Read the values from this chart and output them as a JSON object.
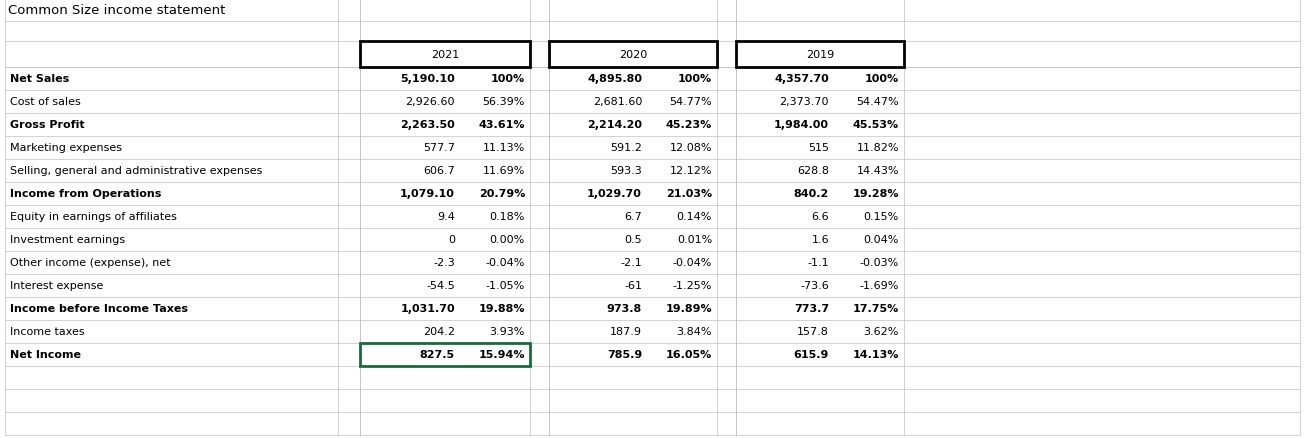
{
  "title": "Common Size income statement",
  "year_blocks": [
    {
      "year": "2021",
      "val_idx": 0
    },
    {
      "year": "2020",
      "val_idx": 1
    },
    {
      "year": "2019",
      "val_idx": 2
    }
  ],
  "rows": [
    {
      "label": "Net Sales",
      "bold": true,
      "vals": [
        [
          "5,190.10",
          "100%"
        ],
        [
          "4,895.80",
          "100%"
        ],
        [
          "4,357.70",
          "100%"
        ]
      ]
    },
    {
      "label": "Cost of sales",
      "bold": false,
      "vals": [
        [
          "2,926.60",
          "56.39%"
        ],
        [
          "2,681.60",
          "54.77%"
        ],
        [
          "2,373.70",
          "54.47%"
        ]
      ]
    },
    {
      "label": "Gross Profit",
      "bold": true,
      "vals": [
        [
          "2,263.50",
          "43.61%"
        ],
        [
          "2,214.20",
          "45.23%"
        ],
        [
          "1,984.00",
          "45.53%"
        ]
      ]
    },
    {
      "label": "Marketing expenses",
      "bold": false,
      "vals": [
        [
          "577.7",
          "11.13%"
        ],
        [
          "591.2",
          "12.08%"
        ],
        [
          "515",
          "11.82%"
        ]
      ]
    },
    {
      "label": "Selling, general and administrative expenses",
      "bold": false,
      "vals": [
        [
          "606.7",
          "11.69%"
        ],
        [
          "593.3",
          "12.12%"
        ],
        [
          "628.8",
          "14.43%"
        ]
      ]
    },
    {
      "label": "Income from Operations",
      "bold": true,
      "vals": [
        [
          "1,079.10",
          "20.79%"
        ],
        [
          "1,029.70",
          "21.03%"
        ],
        [
          "840.2",
          "19.28%"
        ]
      ]
    },
    {
      "label": "Equity in earnings of affiliates",
      "bold": false,
      "vals": [
        [
          "9.4",
          "0.18%"
        ],
        [
          "6.7",
          "0.14%"
        ],
        [
          "6.6",
          "0.15%"
        ]
      ]
    },
    {
      "label": "Investment earnings",
      "bold": false,
      "vals": [
        [
          "0",
          "0.00%"
        ],
        [
          "0.5",
          "0.01%"
        ],
        [
          "1.6",
          "0.04%"
        ]
      ]
    },
    {
      "label": "Other income (expense), net",
      "bold": false,
      "vals": [
        [
          "-2.3",
          "-0.04%"
        ],
        [
          "-2.1",
          "-0.04%"
        ],
        [
          "-1.1",
          "-0.03%"
        ]
      ]
    },
    {
      "label": "Interest expense",
      "bold": false,
      "vals": [
        [
          "-54.5",
          "-1.05%"
        ],
        [
          "-61",
          "-1.25%"
        ],
        [
          "-73.6",
          "-1.69%"
        ]
      ]
    },
    {
      "label": "Income before Income Taxes",
      "bold": true,
      "vals": [
        [
          "1,031.70",
          "19.88%"
        ],
        [
          "973.8",
          "19.89%"
        ],
        [
          "773.7",
          "17.75%"
        ]
      ]
    },
    {
      "label": "Income taxes",
      "bold": false,
      "vals": [
        [
          "204.2",
          "3.93%"
        ],
        [
          "187.9",
          "3.84%"
        ],
        [
          "157.8",
          "3.62%"
        ]
      ]
    },
    {
      "label": "Net Income",
      "bold": true,
      "net_income": true,
      "vals": [
        [
          "827.5",
          "15.94%"
        ],
        [
          "785.9",
          "16.05%"
        ],
        [
          "615.9",
          "14.13%"
        ]
      ]
    }
  ],
  "header_box_color": "#000000",
  "net_income_box_color": "#1a6b3c",
  "grid_color": "#c0c0c0",
  "bg_color": "#ffffff",
  "title_fontsize": 9.5,
  "data_fontsize": 8.0,
  "bold_fontsize": 8.0
}
